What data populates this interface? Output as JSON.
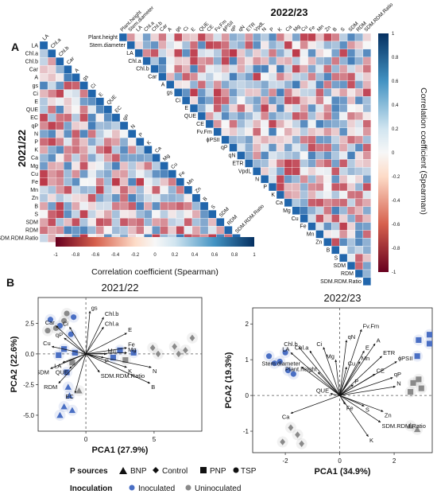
{
  "panel_a": {
    "letter": "A",
    "title_left": "2021/22",
    "title_top": "2022/23",
    "lower_vars": [
      "LA",
      "Chl.a",
      "Chl.b",
      "Car",
      "A",
      "gs",
      "Ci",
      "E",
      "QUE",
      "EC",
      "qP",
      "N",
      "P",
      "K",
      "Ca",
      "Mg",
      "Cu",
      "Fe",
      "Mn",
      "Zn",
      "B",
      "S",
      "SDM",
      "RDM",
      "SDM.RDM.Ratio"
    ],
    "upper_vars": [
      "Plant.height",
      "Stem.diameter",
      "LA",
      "Chl.a",
      "Chl.b",
      "Car",
      "A",
      "gs",
      "Ci",
      "E",
      "QUE",
      "CE",
      "Fv.Fm",
      "ϕPSII",
      "qP",
      "qN",
      "ETR",
      "VpdL",
      "N",
      "P",
      "K",
      "Ca",
      "Mg",
      "Cu",
      "Fe",
      "Mn",
      "Zn",
      "B",
      "S",
      "SDM",
      "RDM",
      "SDM.RDM.Ratio"
    ],
    "colorbar_bottom": {
      "ticks": [
        "-1",
        "-0.8",
        "-0.6",
        "-0.4",
        "-0.2",
        "0",
        "0.2",
        "0.4",
        "0.6",
        "0.8",
        "1"
      ],
      "label": "Correlation coefficient (Spearman)"
    },
    "colorbar_right": {
      "ticks": [
        "1",
        "0.8",
        "0.6",
        "0.4",
        "0.2",
        "0",
        "-0.2",
        "-0.4",
        "-0.6",
        "-0.8",
        "-1"
      ],
      "label": "Correlation coefficient (Spearman)"
    },
    "colors": {
      "neg": "#b2182b",
      "mid": "#f7f7f7",
      "pos": "#2166ac"
    }
  },
  "panel_b": {
    "letter": "B",
    "legend": {
      "p_title": "P sources",
      "p_items": [
        "BNP",
        "Control",
        "PNP",
        "TSP"
      ],
      "inoc_title": "Inoculation",
      "inoc_items": [
        "Inoculated",
        "Uninoculated"
      ],
      "inoc_colors": [
        "#4a6fc4",
        "#8a8a8a"
      ]
    }
  },
  "chart_data": [
    {
      "type": "heatmap",
      "title": "2021/22",
      "xlabel": "",
      "ylabel": "",
      "variables": [
        "LA",
        "Chl.a",
        "Chl.b",
        "Car",
        "A",
        "gs",
        "Ci",
        "E",
        "QUE",
        "EC",
        "qP",
        "N",
        "P",
        "K",
        "Ca",
        "Mg",
        "Cu",
        "Fe",
        "Mn",
        "Zn",
        "B",
        "S",
        "SDM",
        "RDM",
        "SDM.RDM.Ratio"
      ],
      "value_range": [
        -1,
        1
      ],
      "legend_label": "Correlation coefficient (Spearman)"
    },
    {
      "type": "heatmap",
      "title": "2022/23",
      "xlabel": "",
      "ylabel": "",
      "variables": [
        "Plant.height",
        "Stem.diameter",
        "LA",
        "Chl.a",
        "Chl.b",
        "Car",
        "A",
        "gs",
        "Ci",
        "E",
        "QUE",
        "CE",
        "Fv.Fm",
        "ϕPSII",
        "qP",
        "qN",
        "ETR",
        "VpdL",
        "N",
        "P",
        "K",
        "Ca",
        "Mg",
        "Cu",
        "Fe",
        "Mn",
        "Zn",
        "B",
        "S",
        "SDM",
        "RDM",
        "SDM.RDM.Ratio"
      ],
      "value_range": [
        -1,
        1
      ],
      "legend_label": "Correlation coefficient (Spearman)"
    },
    {
      "type": "scatter",
      "title": "2021/22",
      "xlabel": "PCA1 (27.9%)",
      "ylabel": "PCA2 (22.6%)",
      "xlim": [
        -3.5,
        8.5
      ],
      "ylim": [
        -6.3,
        4.6
      ],
      "xticks": [
        0,
        5
      ],
      "yticks": [
        2.5,
        0.0,
        -2.5,
        -5.0
      ],
      "grid": false,
      "loadings": [
        {
          "name": "gs",
          "x": 0.3,
          "y": 3.5
        },
        {
          "name": "Chl.b",
          "x": 1.3,
          "y": 3.0
        },
        {
          "name": "Chl.a",
          "x": 1.3,
          "y": 2.2
        },
        {
          "name": "E",
          "x": 3.0,
          "y": 1.7
        },
        {
          "name": "Car",
          "x": -2.2,
          "y": 2.3
        },
        {
          "name": "Ci",
          "x": -1.2,
          "y": 2.2
        },
        {
          "name": "qP",
          "x": -1.6,
          "y": 1.3
        },
        {
          "name": "Cu",
          "x": -2.5,
          "y": 0.6
        },
        {
          "name": "LA",
          "x": -1.7,
          "y": -0.7
        },
        {
          "name": "SDM",
          "x": -2.6,
          "y": -1.2
        },
        {
          "name": "QUE",
          "x": -1.2,
          "y": -1.2
        },
        {
          "name": "RDM",
          "x": -2.0,
          "y": -2.4
        },
        {
          "name": "EC",
          "x": -0.8,
          "y": -3.2
        },
        {
          "name": "Mn",
          "x": 1.5,
          "y": 0.0
        },
        {
          "name": "Fe",
          "x": 3.0,
          "y": 0.5
        },
        {
          "name": "Mg",
          "x": 3.0,
          "y": 0.1
        },
        {
          "name": "P",
          "x": 1.3,
          "y": -0.3
        },
        {
          "name": "K",
          "x": 3.0,
          "y": -1.1
        },
        {
          "name": "N",
          "x": 4.8,
          "y": -1.1
        },
        {
          "name": "SDM.RDM.Ratio",
          "x": 1.0,
          "y": -1.5
        },
        {
          "name": "B",
          "x": 4.7,
          "y": -2.4
        }
      ],
      "points": [
        {
          "x": -2.6,
          "y": 2.8,
          "shape": "circle",
          "group": "Inoculated"
        },
        {
          "x": -1.9,
          "y": 2.3,
          "shape": "circle",
          "group": "Inoculated"
        },
        {
          "x": -2.2,
          "y": 2.1,
          "shape": "circle",
          "group": "Uninoculated"
        },
        {
          "x": -1.4,
          "y": 3.3,
          "shape": "circle",
          "group": "Uninoculated"
        },
        {
          "x": -0.9,
          "y": 3.0,
          "shape": "circle",
          "group": "Inoculated"
        },
        {
          "x": -2.8,
          "y": 1.9,
          "shape": "circle",
          "group": "Uninoculated"
        },
        {
          "x": -1.6,
          "y": 2.7,
          "shape": "circle",
          "group": "Uninoculated"
        },
        {
          "x": -1.1,
          "y": 1.6,
          "shape": "circle",
          "group": "Inoculated"
        },
        {
          "x": -2.0,
          "y": -0.1,
          "shape": "square",
          "group": "Inoculated"
        },
        {
          "x": -1.6,
          "y": 0.4,
          "shape": "square",
          "group": "Inoculated"
        },
        {
          "x": -1.0,
          "y": -0.7,
          "shape": "square",
          "group": "Uninoculated"
        },
        {
          "x": -0.8,
          "y": 0.1,
          "shape": "square",
          "group": "Inoculated"
        },
        {
          "x": -1.4,
          "y": -1.5,
          "shape": "square",
          "group": "Inoculated"
        },
        {
          "x": 2.0,
          "y": -0.3,
          "shape": "square",
          "group": "Inoculated"
        },
        {
          "x": 2.5,
          "y": 0.3,
          "shape": "square",
          "group": "Inoculated"
        },
        {
          "x": 2.9,
          "y": -0.5,
          "shape": "square",
          "group": "Uninoculated"
        },
        {
          "x": 3.5,
          "y": 0.1,
          "shape": "square",
          "group": "Inoculated"
        },
        {
          "x": -1.2,
          "y": -3.4,
          "shape": "triangle",
          "group": "Inoculated"
        },
        {
          "x": -1.6,
          "y": -4.3,
          "shape": "triangle",
          "group": "Inoculated"
        },
        {
          "x": -1.0,
          "y": -4.6,
          "shape": "triangle",
          "group": "Inoculated"
        },
        {
          "x": -1.9,
          "y": -5.0,
          "shape": "triangle",
          "group": "Inoculated"
        },
        {
          "x": -0.5,
          "y": -3.0,
          "shape": "triangle",
          "group": "Uninoculated"
        },
        {
          "x": -1.3,
          "y": -2.7,
          "shape": "triangle",
          "group": "Inoculated"
        },
        {
          "x": 4.9,
          "y": 0.5,
          "shape": "diamond",
          "group": "Uninoculated"
        },
        {
          "x": 5.3,
          "y": 0.0,
          "shape": "diamond",
          "group": "Uninoculated"
        },
        {
          "x": 6.5,
          "y": 0.6,
          "shape": "diamond",
          "group": "Uninoculated"
        },
        {
          "x": 6.8,
          "y": 0.0,
          "shape": "diamond",
          "group": "Uninoculated"
        },
        {
          "x": 7.3,
          "y": 0.3,
          "shape": "diamond",
          "group": "Uninoculated"
        },
        {
          "x": 7.8,
          "y": 1.3,
          "shape": "diamond",
          "group": "Uninoculated"
        }
      ]
    },
    {
      "type": "scatter",
      "title": "2022/23",
      "xlabel": "PCA1 (34.9%)",
      "ylabel": "PCA2 (19.3%)",
      "xlim": [
        -3.2,
        3.4
      ],
      "ylim": [
        -1.6,
        2.45
      ],
      "xticks": [
        -2,
        0,
        2
      ],
      "yticks": [
        2,
        1,
        0,
        -1
      ],
      "grid": false,
      "loadings": [
        {
          "name": "Fv.Fm",
          "x": 0.8,
          "y": 1.85
        },
        {
          "name": "qN",
          "x": 0.25,
          "y": 1.55
        },
        {
          "name": "A",
          "x": 1.3,
          "y": 1.45
        },
        {
          "name": "E",
          "x": 0.9,
          "y": 1.25
        },
        {
          "name": "ETR",
          "x": 1.55,
          "y": 1.1
        },
        {
          "name": "Mn",
          "x": 0.75,
          "y": 0.95
        },
        {
          "name": "ϕPSII",
          "x": 2.1,
          "y": 0.95
        },
        {
          "name": "Ci",
          "x": -0.6,
          "y": 1.35
        },
        {
          "name": "Chl.b",
          "x": -1.5,
          "y": 1.35
        },
        {
          "name": "Chl.a",
          "x": -1.1,
          "y": 1.25
        },
        {
          "name": "LA",
          "x": -1.8,
          "y": 1.2
        },
        {
          "name": "Mg",
          "x": -0.15,
          "y": 1.0
        },
        {
          "name": "Stem.diameter",
          "x": -1.4,
          "y": 0.8
        },
        {
          "name": "Plant.height",
          "x": -0.8,
          "y": 0.65
        },
        {
          "name": "Cu",
          "x": 0.25,
          "y": 0.8
        },
        {
          "name": "CE",
          "x": 1.3,
          "y": 0.6
        },
        {
          "name": "qP",
          "x": 1.95,
          "y": 0.5
        },
        {
          "name": "P",
          "x": 0.5,
          "y": 0.3
        },
        {
          "name": "QUE",
          "x": -0.35,
          "y": 0.05
        },
        {
          "name": "N",
          "x": 2.05,
          "y": 0.25
        },
        {
          "name": "Ca",
          "x": -1.8,
          "y": -0.5
        },
        {
          "name": "Fe",
          "x": 0.2,
          "y": -0.25
        },
        {
          "name": "S",
          "x": 0.9,
          "y": -0.3
        },
        {
          "name": "Zn",
          "x": 1.6,
          "y": -0.45
        },
        {
          "name": "SDM.RDM.Ratio",
          "x": 1.5,
          "y": -0.75
        },
        {
          "name": "K",
          "x": 1.05,
          "y": -1.15
        }
      ],
      "points": [
        {
          "x": -2.2,
          "y": 0.95,
          "shape": "circle",
          "group": "Inoculated"
        },
        {
          "x": -1.7,
          "y": 0.6,
          "shape": "circle",
          "group": "Inoculated"
        },
        {
          "x": -2.6,
          "y": 1.1,
          "shape": "circle",
          "group": "Inoculated"
        },
        {
          "x": -2.4,
          "y": 0.9,
          "shape": "circle",
          "group": "Inoculated"
        },
        {
          "x": -2.0,
          "y": 1.2,
          "shape": "circle",
          "group": "Inoculated"
        },
        {
          "x": -1.9,
          "y": 0.7,
          "shape": "circle",
          "group": "Inoculated"
        },
        {
          "x": -1.8,
          "y": -0.9,
          "shape": "diamond",
          "group": "Uninoculated"
        },
        {
          "x": -1.55,
          "y": -1.1,
          "shape": "diamond",
          "group": "Uninoculated"
        },
        {
          "x": -2.1,
          "y": -1.3,
          "shape": "diamond",
          "group": "Uninoculated"
        },
        {
          "x": -1.4,
          "y": -1.35,
          "shape": "diamond",
          "group": "Uninoculated"
        },
        {
          "x": 2.9,
          "y": 1.55,
          "shape": "square",
          "group": "Inoculated"
        },
        {
          "x": 3.3,
          "y": 1.45,
          "shape": "square",
          "group": "Inoculated"
        },
        {
          "x": 3.3,
          "y": 1.7,
          "shape": "square",
          "group": "Inoculated"
        },
        {
          "x": 2.85,
          "y": 1.1,
          "shape": "square",
          "group": "Inoculated"
        },
        {
          "x": 2.7,
          "y": 0.35,
          "shape": "square",
          "group": "Uninoculated"
        },
        {
          "x": 3.0,
          "y": 0.2,
          "shape": "square",
          "group": "Uninoculated"
        },
        {
          "x": 2.6,
          "y": 0.1,
          "shape": "square",
          "group": "Uninoculated"
        },
        {
          "x": 2.9,
          "y": 0.45,
          "shape": "square",
          "group": "Uninoculated"
        },
        {
          "x": 2.6,
          "y": -0.85,
          "shape": "triangle",
          "group": "Uninoculated"
        },
        {
          "x": 2.85,
          "y": -0.95,
          "shape": "triangle",
          "group": "Uninoculated"
        }
      ]
    }
  ]
}
